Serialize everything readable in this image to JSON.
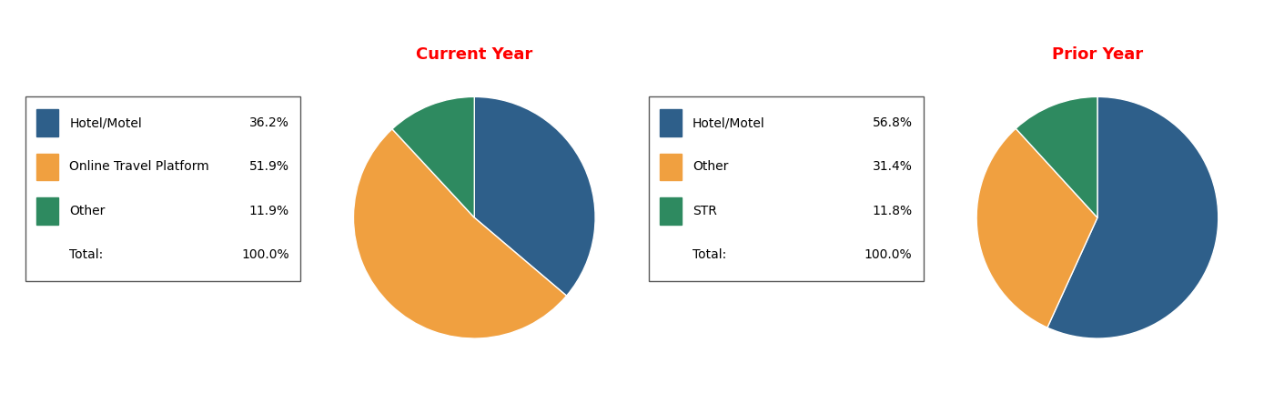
{
  "chart_data": [
    {
      "type": "pie",
      "title": "Current Year",
      "title_color": "#FF0000",
      "categories": [
        "Hotel/Motel",
        "Online Travel Platform",
        "Other"
      ],
      "values": [
        36.2,
        51.9,
        11.9
      ],
      "value_labels": [
        "36.2%",
        "51.9%",
        "11.9%"
      ],
      "colors": [
        "#2E5F8A",
        "#F0A040",
        "#2E8A60"
      ],
      "total": {
        "label": "Total:",
        "value_label": "100.0%"
      }
    },
    {
      "type": "pie",
      "title": "Prior Year",
      "title_color": "#FF0000",
      "categories": [
        "Hotel/Motel",
        "Other",
        "STR"
      ],
      "values": [
        56.8,
        31.4,
        11.8
      ],
      "value_labels": [
        "56.8%",
        "31.4%",
        "11.8%"
      ],
      "colors": [
        "#2E5F8A",
        "#F0A040",
        "#2E8A60"
      ],
      "total": {
        "label": "Total:",
        "value_label": "100.0%"
      }
    }
  ]
}
